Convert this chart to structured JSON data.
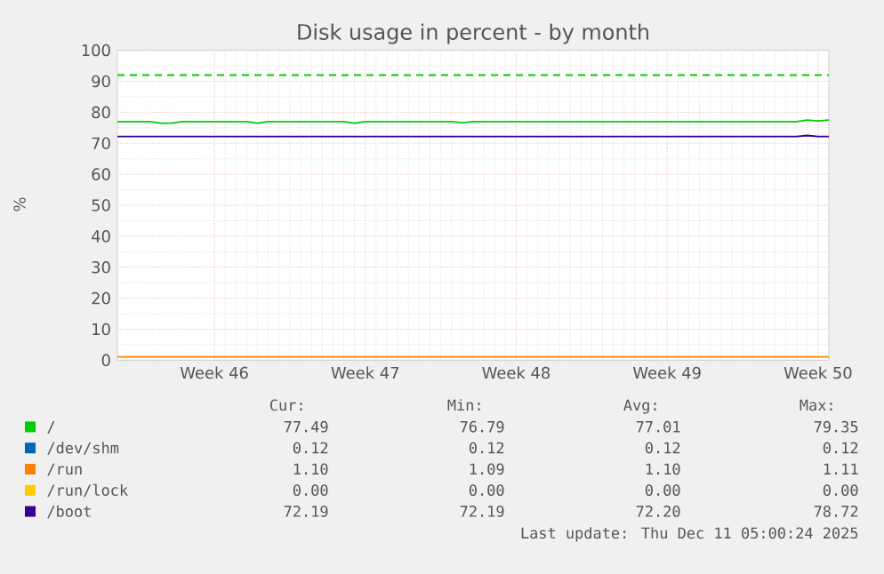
{
  "chart_data": {
    "type": "line",
    "title": "Disk usage in percent - by month",
    "ylabel": "%",
    "categories": [
      null,
      null,
      null,
      null,
      null,
      null,
      null,
      null,
      null,
      "Week 46",
      null,
      null,
      null,
      null,
      null,
      null,
      null,
      null,
      null,
      null,
      null,
      null,
      null,
      "Week 47",
      null,
      null,
      null,
      null,
      null,
      null,
      null,
      null,
      null,
      null,
      null,
      null,
      null,
      "Week 48",
      null,
      null,
      null,
      null,
      null,
      null,
      null,
      null,
      null,
      null,
      null,
      null,
      null,
      "Week 49",
      null,
      null,
      null,
      null,
      null,
      null,
      null,
      null,
      null,
      null,
      null,
      null,
      null,
      "Week 50",
      null
    ],
    "ylim": [
      0,
      100
    ],
    "yticks": [
      0,
      10,
      20,
      30,
      40,
      50,
      60,
      70,
      80,
      90,
      100
    ],
    "grid": true,
    "legend": "bottom",
    "series": [
      {
        "name": "/",
        "color": "#00cc00",
        "values": [
          77,
          77,
          77,
          77,
          76.5,
          76.5,
          77,
          77,
          77,
          77,
          77,
          77,
          77,
          76.5,
          77,
          77,
          77,
          77,
          77,
          77,
          77,
          77,
          76.5,
          77,
          77,
          77,
          77,
          77,
          77,
          77,
          77,
          77,
          76.6,
          77,
          77,
          77,
          77,
          77,
          77,
          77,
          77,
          77,
          77,
          77,
          77,
          77,
          77,
          77,
          77,
          77,
          77,
          77,
          77,
          77,
          77,
          77,
          77,
          77,
          77,
          77,
          77,
          77,
          77,
          77,
          77.5,
          77.2,
          77.5
        ]
      },
      {
        "name": "/dev/shm",
        "color": "#0066b3",
        "values": [
          null,
          null,
          null,
          null,
          null,
          null,
          null,
          null,
          null,
          null,
          null,
          null,
          null,
          null,
          null,
          null,
          null,
          null,
          null,
          null,
          null,
          null,
          null,
          null,
          null,
          null,
          null,
          null,
          null,
          null,
          null,
          null,
          null,
          null,
          null,
          null,
          null,
          null,
          null,
          null,
          null,
          null,
          null,
          null,
          null,
          null,
          null,
          null,
          null,
          null,
          null,
          null,
          null,
          null,
          null,
          null,
          null,
          null,
          null,
          null,
          null,
          null,
          null,
          null,
          null,
          null,
          null
        ]
      },
      {
        "name": "/run",
        "color": "#ff8000",
        "values": [
          1.1,
          1.1,
          1.1,
          1.1,
          1.1,
          1.1,
          1.1,
          1.1,
          1.1,
          1.1,
          1.1,
          1.1,
          1.1,
          1.1,
          1.1,
          1.1,
          1.1,
          1.1,
          1.1,
          1.1,
          1.1,
          1.1,
          1.1,
          1.1,
          1.1,
          1.1,
          1.1,
          1.1,
          1.1,
          1.1,
          1.1,
          1.1,
          1.1,
          1.1,
          1.1,
          1.1,
          1.1,
          1.1,
          1.1,
          1.1,
          1.1,
          1.1,
          1.1,
          1.1,
          1.1,
          1.1,
          1.1,
          1.1,
          1.1,
          1.1,
          1.1,
          1.1,
          1.1,
          1.1,
          1.1,
          1.1,
          1.1,
          1.1,
          1.1,
          1.1,
          1.1,
          1.1,
          1.1,
          1.1,
          1.1,
          1.1,
          1.1
        ]
      },
      {
        "name": "/run/lock",
        "color": "#ffcc00",
        "values": [
          null,
          null,
          null,
          null,
          null,
          null,
          null,
          null,
          null,
          null,
          null,
          null,
          null,
          null,
          null,
          null,
          null,
          null,
          null,
          null,
          null,
          null,
          null,
          null,
          null,
          null,
          null,
          null,
          null,
          null,
          null,
          null,
          null,
          null,
          null,
          null,
          null,
          null,
          null,
          null,
          null,
          null,
          null,
          null,
          null,
          null,
          null,
          null,
          null,
          null,
          null,
          null,
          null,
          null,
          null,
          null,
          null,
          null,
          null,
          null,
          null,
          null,
          null,
          null,
          null,
          null,
          null
        ]
      },
      {
        "name": "/boot",
        "color": "#330099",
        "values": [
          72.2,
          72.2,
          72.2,
          72.2,
          72.2,
          72.2,
          72.2,
          72.2,
          72.2,
          72.2,
          72.2,
          72.2,
          72.2,
          72.2,
          72.2,
          72.2,
          72.2,
          72.2,
          72.2,
          72.2,
          72.2,
          72.2,
          72.2,
          72.2,
          72.2,
          72.2,
          72.2,
          72.2,
          72.2,
          72.2,
          72.2,
          72.2,
          72.2,
          72.2,
          72.2,
          72.2,
          72.2,
          72.2,
          72.2,
          72.2,
          72.2,
          72.2,
          72.2,
          72.2,
          72.2,
          72.2,
          72.2,
          72.2,
          72.2,
          72.2,
          72.2,
          72.2,
          72.2,
          72.2,
          72.2,
          72.2,
          72.2,
          72.2,
          72.2,
          72.2,
          72.2,
          72.2,
          72.2,
          72.2,
          72.5,
          72.2,
          72.2
        ]
      }
    ],
    "ref_lines": [
      {
        "axis": "y",
        "value": 92,
        "color": "#00cc00",
        "line_style": "dashed"
      }
    ],
    "annotations": [
      "Cur:",
      "Min:",
      "Avg:",
      "Max:",
      "77.49",
      "76.79",
      "77.01",
      "79.35",
      "0.12",
      "0.12",
      "0.12",
      "0.12",
      "1.10",
      "1.09",
      "1.10",
      "1.11",
      "0.00",
      "0.00",
      "0.00",
      "0.00",
      "72.19",
      "72.19",
      "72.20",
      "78.72",
      "Last update: Thu Dec 11 05:00:24 2025"
    ]
  }
}
